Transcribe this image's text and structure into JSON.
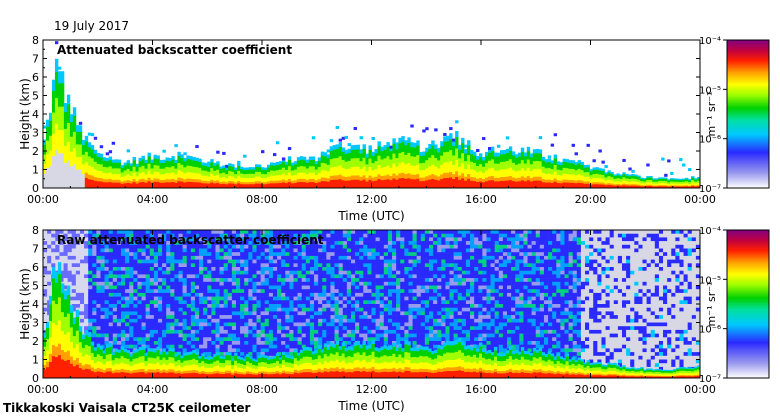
{
  "date": "19 July 2017",
  "footer": "Tikkakoski Vaisala CT25K ceilometer",
  "chart_data": [
    {
      "type": "heatmap",
      "title": "Attenuated backscatter coefficient",
      "xlabel": "Time (UTC)",
      "ylabel": "Height (km)",
      "x_ticks": [
        "00:00",
        "04:00",
        "08:00",
        "12:00",
        "16:00",
        "20:00",
        "00:00"
      ],
      "y_ticks": [
        "0",
        "1",
        "2",
        "3",
        "4",
        "5",
        "6",
        "7",
        "8"
      ],
      "ylim": [
        0,
        8
      ],
      "colorbar": {
        "unit_label": "m⁻¹ sr⁻¹",
        "scale": "log",
        "range": [
          1e-07,
          0.0001
        ],
        "tick_labels": [
          "10⁻⁷",
          "10⁻⁶",
          "10⁻⁵",
          "10⁻⁴"
        ]
      },
      "series": [
        {
          "kind": "aerosol_layer_top_km",
          "hours": [
            0,
            0.5,
            1,
            1.5,
            2,
            3,
            4,
            5,
            6,
            7,
            8,
            9,
            10,
            11,
            12,
            13,
            14,
            15,
            16,
            17,
            18,
            19,
            20,
            21,
            22,
            23,
            24
          ],
          "values": [
            2.0,
            6.6,
            4.4,
            2.6,
            1.8,
            1.4,
            1.7,
            1.8,
            1.4,
            1.2,
            1.2,
            1.5,
            1.7,
            2.4,
            2.1,
            2.5,
            2.2,
            2.9,
            1.9,
            2.1,
            1.9,
            1.5,
            1.2,
            0.8,
            0.6,
            0.5,
            0.6
          ]
        }
      ]
    },
    {
      "type": "heatmap",
      "title": "Raw attenuated backscatter coefficient",
      "xlabel": "Time (UTC)",
      "ylabel": "Height (km)",
      "x_ticks": [
        "00:00",
        "04:00",
        "08:00",
        "12:00",
        "16:00",
        "20:00",
        "00:00"
      ],
      "y_ticks": [
        "0",
        "1",
        "2",
        "3",
        "4",
        "5",
        "6",
        "7",
        "8"
      ],
      "ylim": [
        0,
        8
      ],
      "colorbar": {
        "unit_label": "m⁻¹ sr⁻¹",
        "scale": "log",
        "range": [
          1e-07,
          0.0001
        ],
        "tick_labels": [
          "10⁻⁷",
          "10⁻⁶",
          "10⁻⁵",
          "10⁻⁴"
        ]
      },
      "series": [
        {
          "kind": "aerosol_layer_top_km",
          "hours": [
            0,
            0.5,
            1,
            1.5,
            2,
            3,
            4,
            5,
            6,
            7,
            8,
            9,
            10,
            11,
            12,
            13,
            14,
            15,
            16,
            17,
            18,
            19,
            20,
            21,
            22,
            23,
            24
          ],
          "values": [
            2.0,
            6.6,
            4.4,
            2.4,
            1.8,
            1.5,
            1.6,
            1.4,
            1.3,
            1.2,
            1.1,
            1.3,
            1.6,
            1.9,
            1.8,
            1.9,
            1.5,
            2.1,
            1.7,
            1.5,
            1.5,
            1.2,
            0.9,
            0.7,
            0.5,
            0.5,
            0.6
          ]
        }
      ]
    }
  ]
}
